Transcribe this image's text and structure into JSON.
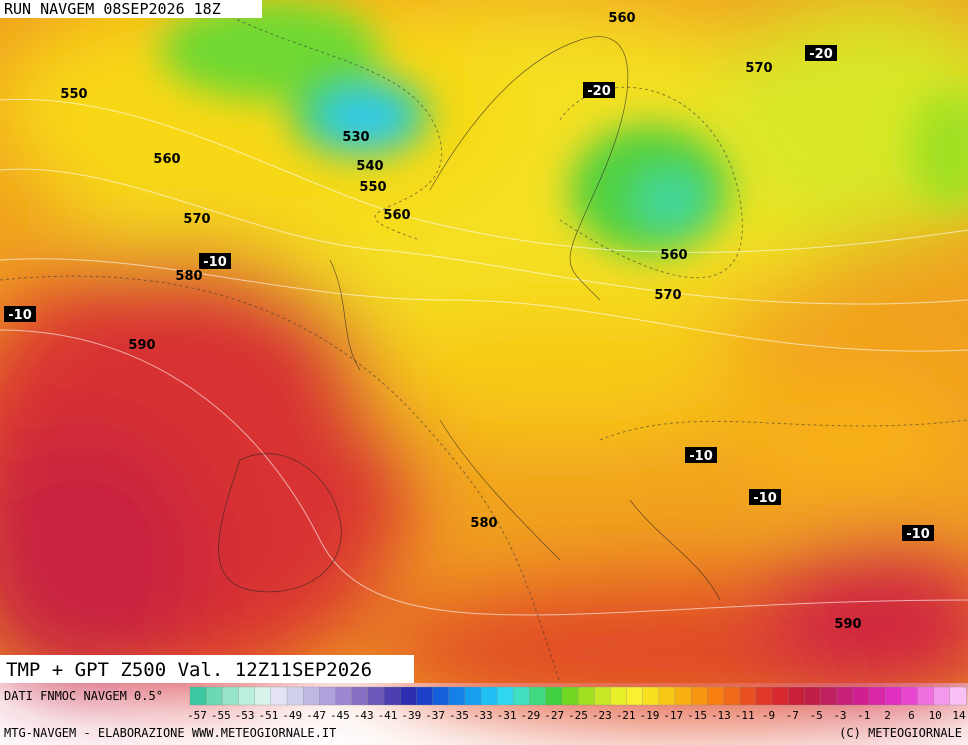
{
  "header": {
    "run": "RUN NAVGEM 08SEP2026 18Z"
  },
  "map": {
    "contour_labels": [
      {
        "text": "560"
      },
      {
        "text": "570"
      },
      {
        "text": "-20"
      },
      {
        "text": "-20"
      },
      {
        "text": "550"
      },
      {
        "text": "530"
      },
      {
        "text": "540"
      },
      {
        "text": "550"
      },
      {
        "text": "560"
      },
      {
        "text": "560"
      },
      {
        "text": "570"
      },
      {
        "text": "-10"
      },
      {
        "text": "580"
      },
      {
        "text": "-10"
      },
      {
        "text": "590"
      },
      {
        "text": "560"
      },
      {
        "text": "570"
      },
      {
        "text": "-10"
      },
      {
        "text": "-10"
      },
      {
        "text": "-10"
      },
      {
        "text": "580"
      },
      {
        "text": "590"
      }
    ]
  },
  "footer": {
    "title": "TMP + GPT Z500 Val. 12Z11SEP2026",
    "source": "DATI FNMOC NAVGEM 0.5°",
    "credit_left": "MTG-NAVGEM - ELABORAZIONE WWW.METEOGIORNALE.IT",
    "credit_right": "(C) METEOGIORNALE"
  },
  "legend": {
    "labels": [
      "-57",
      "-55",
      "-53",
      "-51",
      "-49",
      "-47",
      "-45",
      "-43",
      "-41",
      "-39",
      "-37",
      "-35",
      "-33",
      "-31",
      "-29",
      "-27",
      "-25",
      "-23",
      "-21",
      "-19",
      "-17",
      "-15",
      "-13",
      "-11",
      "-9",
      "-7",
      "-5",
      "-3",
      "-1",
      "2",
      "6",
      "10",
      "14"
    ],
    "colors": [
      "#3cc8a0",
      "#6cd8b4",
      "#98e4c8",
      "#bcefdc",
      "#d8f4ec",
      "#e4e4f4",
      "#d0d0ec",
      "#c0b8e4",
      "#b0a0dc",
      "#9c88d0",
      "#8870c4",
      "#6c58b8",
      "#4c40b0",
      "#2c30b0",
      "#1c40c8",
      "#1460dc",
      "#1480e8",
      "#18a0f0",
      "#20c0f4",
      "#30d8f0",
      "#40e0c0",
      "#40d880",
      "#40d040",
      "#70d820",
      "#a0e020",
      "#c8e828",
      "#e8f028",
      "#f8f030",
      "#f8e020",
      "#f8c818",
      "#f8b010",
      "#f89810",
      "#f88010",
      "#f06818",
      "#e85020",
      "#e03828",
      "#d82830",
      "#c82038",
      "#c02048",
      "#c02060",
      "#c82078",
      "#d02090",
      "#d828a8",
      "#e030c0",
      "#e848d0",
      "#f070e0",
      "#f498ec",
      "#f8c0f4"
    ]
  }
}
